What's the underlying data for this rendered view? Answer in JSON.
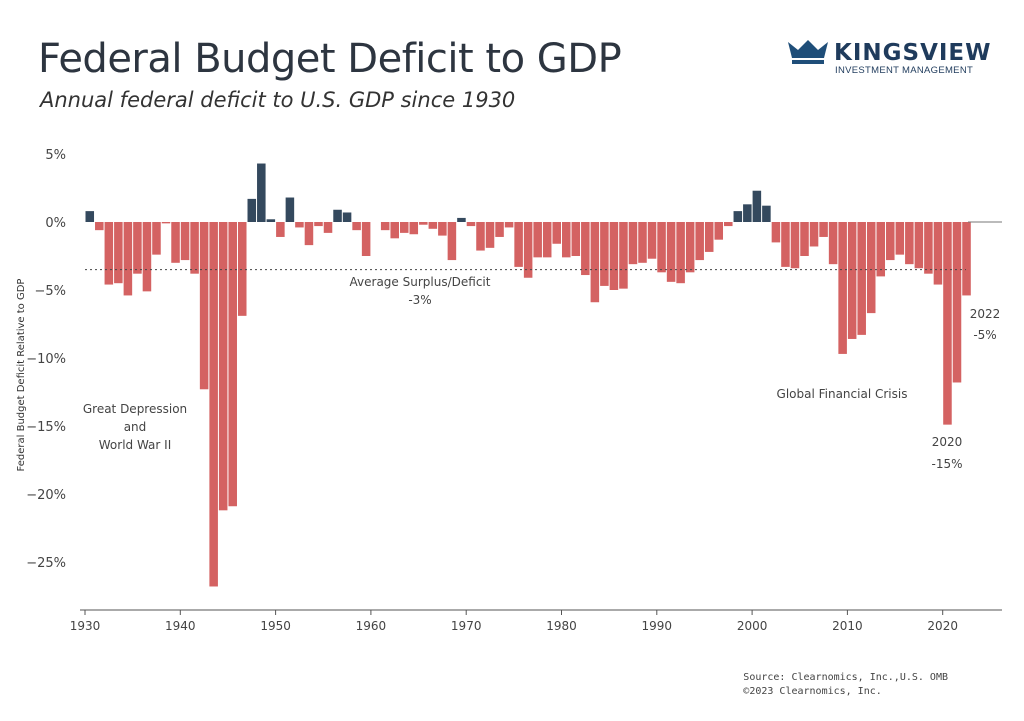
{
  "header": {
    "title": "Federal Budget Deficit to GDP",
    "subtitle": "Annual federal deficit to U.S. GDP since 1930"
  },
  "logo": {
    "name": "KINGSVIEW",
    "tagline": "INVESTMENT MANAGEMENT",
    "icon": "crown-icon",
    "color": "#1f4e79"
  },
  "footer": {
    "source": "Source: Clearnomics, Inc.,U.S. OMB",
    "copyright": "©2023 Clearnomics, Inc."
  },
  "chart_data": {
    "type": "bar",
    "ylabel": "Federal Budget Deficit Relative to GDP",
    "ylim": [
      -28,
      6
    ],
    "yticks": [
      5,
      0,
      -5,
      -10,
      -15,
      -20,
      -25
    ],
    "ytick_labels": [
      "5%",
      "0%",
      "−5%",
      "−10%",
      "−15%",
      "−20%",
      "−25%"
    ],
    "xticks": [
      1930,
      1940,
      1950,
      1960,
      1970,
      1980,
      1990,
      2000,
      2010,
      2020
    ],
    "xlim": [
      1930,
      2026
    ],
    "grid": false,
    "colors": {
      "deficit": "#d46262",
      "surplus": "#34495e"
    },
    "average": {
      "value": -3.5,
      "label": "Average Surplus/Deficit",
      "value_label": "-3%"
    },
    "annotations": [
      {
        "text": [
          "Great Depression",
          "and",
          "World War II"
        ]
      },
      {
        "text": [
          "Global Financial Crisis"
        ]
      },
      {
        "text": [
          "2020",
          "-15%"
        ]
      },
      {
        "text": [
          "2022",
          "-5%"
        ]
      }
    ],
    "x": [
      1930,
      1931,
      1932,
      1933,
      1934,
      1935,
      1936,
      1937,
      1938,
      1939,
      1940,
      1941,
      1942,
      1943,
      1944,
      1945,
      1946,
      1947,
      1948,
      1949,
      1950,
      1951,
      1952,
      1953,
      1954,
      1955,
      1956,
      1957,
      1958,
      1959,
      1960,
      1961,
      1962,
      1963,
      1964,
      1965,
      1966,
      1967,
      1968,
      1969,
      1970,
      1971,
      1972,
      1973,
      1974,
      1975,
      1976,
      1977,
      1978,
      1979,
      1980,
      1981,
      1982,
      1983,
      1984,
      1985,
      1986,
      1987,
      1988,
      1989,
      1990,
      1991,
      1992,
      1993,
      1994,
      1995,
      1996,
      1997,
      1998,
      1999,
      2000,
      2001,
      2002,
      2003,
      2004,
      2005,
      2006,
      2007,
      2008,
      2009,
      2010,
      2011,
      2012,
      2013,
      2014,
      2015,
      2016,
      2017,
      2018,
      2019,
      2020,
      2021,
      2022
    ],
    "values": [
      0.8,
      -0.6,
      -4.6,
      -4.5,
      -5.4,
      -3.8,
      -5.1,
      -2.4,
      -0.1,
      -3.0,
      -2.8,
      -3.8,
      -12.3,
      -26.8,
      -21.2,
      -20.9,
      -6.9,
      1.7,
      4.3,
      0.2,
      -1.1,
      1.8,
      -0.4,
      -1.7,
      -0.3,
      -0.8,
      0.9,
      0.7,
      -0.6,
      -2.5,
      0.0,
      -0.6,
      -1.2,
      -0.8,
      -0.9,
      -0.2,
      -0.5,
      -1.0,
      -2.8,
      0.3,
      -0.3,
      -2.1,
      -1.9,
      -1.1,
      -0.4,
      -3.3,
      -4.1,
      -2.6,
      -2.6,
      -1.6,
      -2.6,
      -2.5,
      -3.9,
      -5.9,
      -4.7,
      -5.0,
      -4.9,
      -3.1,
      -3.0,
      -2.7,
      -3.7,
      -4.4,
      -4.5,
      -3.7,
      -2.8,
      -2.2,
      -1.3,
      -0.3,
      0.8,
      1.3,
      2.3,
      1.2,
      -1.5,
      -3.3,
      -3.4,
      -2.5,
      -1.8,
      -1.1,
      -3.1,
      -9.7,
      -8.6,
      -8.3,
      -6.7,
      -4.0,
      -2.8,
      -2.4,
      -3.1,
      -3.4,
      -3.8,
      -4.6,
      -14.9,
      -11.8,
      -5.4
    ]
  }
}
